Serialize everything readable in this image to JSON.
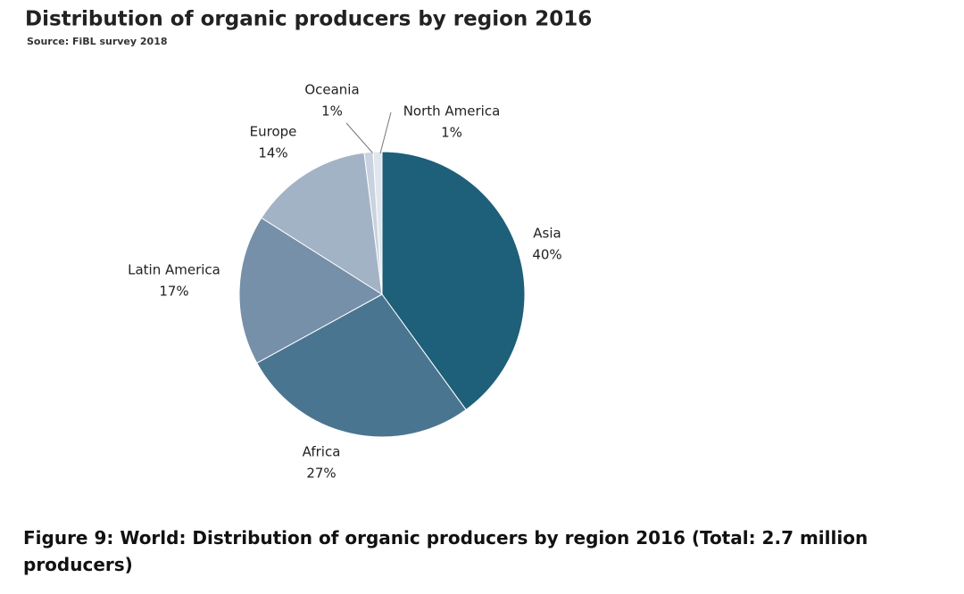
{
  "chart_data": {
    "type": "pie",
    "title": "Distribution of organic producers by region 2016",
    "subtitle": "Source: FiBL survey 2018",
    "caption": "Figure 9: World: Distribution of organic producers by region 2016 (Total: 2.7 million producers)",
    "categories": [
      "Asia",
      "Africa",
      "Latin America",
      "Europe",
      "Oceania",
      "North America"
    ],
    "values": [
      40,
      27,
      17,
      14,
      1,
      1
    ],
    "value_labels": [
      "40%",
      "27%",
      "17%",
      "14%",
      "1%",
      "1%"
    ],
    "colors": [
      "#1e5f7a",
      "#4a7591",
      "#7590a8",
      "#a3b3c6",
      "#c9d3df",
      "#dfe6ee"
    ]
  }
}
